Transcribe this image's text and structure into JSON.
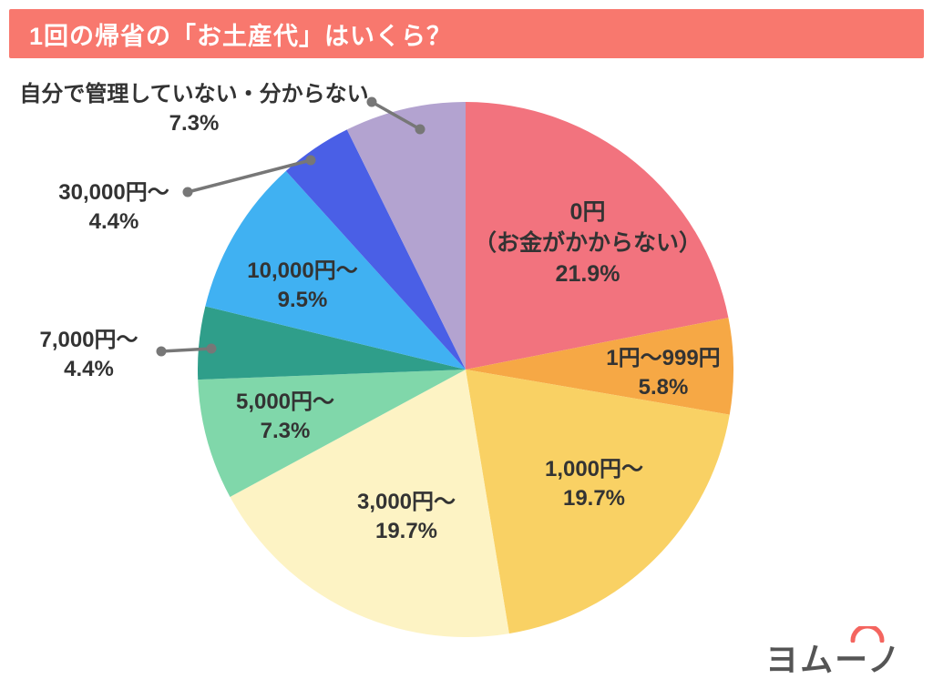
{
  "header": {
    "title": "1回の帰省の「お土産代」はいくら？",
    "bg": "#f8786e",
    "text_color": "#ffffff"
  },
  "logo": {
    "text": "ヨムーノ",
    "text_color": "#555555",
    "accent_color": "#f4655f"
  },
  "chart_data": {
    "type": "pie",
    "title": "1回の帰省の「お土産代」はいくら？",
    "start_angle_deg": -90,
    "direction": "clockwise",
    "legend": "none",
    "leader_line_color": "#777777",
    "segments": [
      {
        "name": "0円（お金がかからない）",
        "lines": [
          "0円",
          "（お金がかからない）"
        ],
        "pct": 21.9,
        "pct_label": "21.9%",
        "color": "#f2737e",
        "label_placement": "inside"
      },
      {
        "name": "1円〜999円",
        "lines": [
          "1円〜999円"
        ],
        "pct": 5.8,
        "pct_label": "5.8%",
        "color": "#f6a845",
        "label_placement": "inside"
      },
      {
        "name": "1,000円〜",
        "lines": [
          "1,000円〜"
        ],
        "pct": 19.7,
        "pct_label": "19.7%",
        "color": "#f9d164",
        "label_placement": "inside"
      },
      {
        "name": "3,000円〜",
        "lines": [
          "3,000円〜"
        ],
        "pct": 19.7,
        "pct_label": "19.7%",
        "color": "#fdf3c4",
        "label_placement": "inside"
      },
      {
        "name": "5,000円〜",
        "lines": [
          "5,000円〜"
        ],
        "pct": 7.3,
        "pct_label": "7.3%",
        "color": "#80d7aa",
        "label_placement": "inside"
      },
      {
        "name": "7,000円〜",
        "lines": [
          "7,000円〜"
        ],
        "pct": 4.4,
        "pct_label": "4.4%",
        "color": "#2f9e8a",
        "label_placement": "outside"
      },
      {
        "name": "10,000円〜",
        "lines": [
          "10,000円〜"
        ],
        "pct": 9.5,
        "pct_label": "9.5%",
        "color": "#40b1f2",
        "label_placement": "inside"
      },
      {
        "name": "30,000円〜",
        "lines": [
          "30,000円〜"
        ],
        "pct": 4.4,
        "pct_label": "4.4%",
        "color": "#4a5fe6",
        "label_placement": "outside"
      },
      {
        "name": "自分で管理していない・分からない",
        "lines": [
          "自分で管理していない・分からない"
        ],
        "pct": 7.3,
        "pct_label": "7.3%",
        "color": "#b3a3d0",
        "label_placement": "outside"
      }
    ]
  }
}
